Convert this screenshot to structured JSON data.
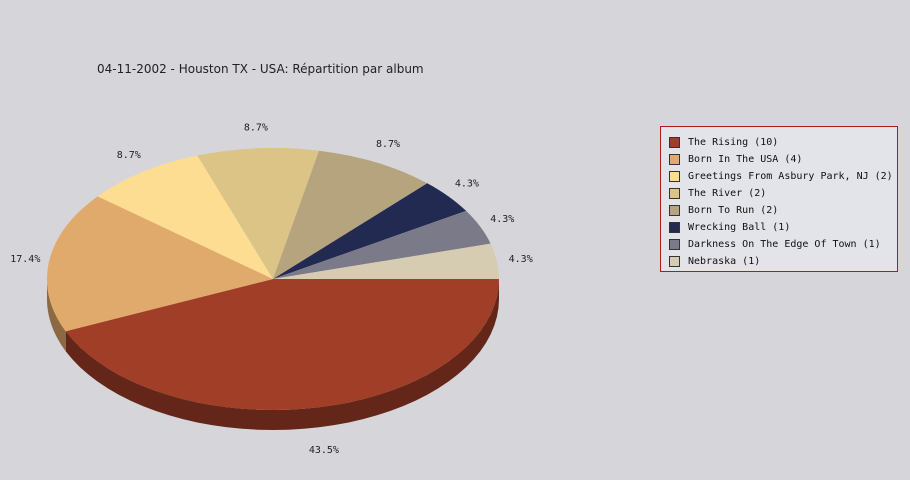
{
  "chart_data": {
    "type": "pie",
    "title": "04-11-2002 - Houston TX - USA:  Répartition par album",
    "slices": [
      {
        "label": "The Rising (10)",
        "value": 10,
        "percent_label": "43.5%",
        "color": "#a03e27"
      },
      {
        "label": "Born In The USA (4)",
        "value": 4,
        "percent_label": "17.4%",
        "color": "#e0aa6c"
      },
      {
        "label": "Greetings From Asbury Park, NJ (2)",
        "value": 2,
        "percent_label": "8.7%",
        "color": "#fddd92"
      },
      {
        "label": "The River (2)",
        "value": 2,
        "percent_label": "8.7%",
        "color": "#dcc487"
      },
      {
        "label": "Born To Run (2)",
        "value": 2,
        "percent_label": "8.7%",
        "color": "#b6a47e"
      },
      {
        "label": "Wrecking Ball (1)",
        "value": 1,
        "percent_label": "4.3%",
        "color": "#232a52"
      },
      {
        "label": "Darkness On The Edge Of Town (1)",
        "value": 1,
        "percent_label": "4.3%",
        "color": "#7b7a88"
      },
      {
        "label": "Nebraska (1)",
        "value": 1,
        "percent_label": "4.3%",
        "color": "#d6ccb2"
      }
    ],
    "legend_position": "right"
  }
}
